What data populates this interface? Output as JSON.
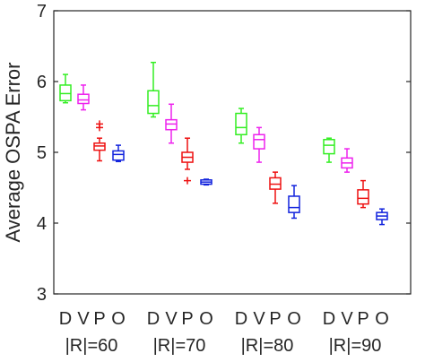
{
  "chart_data": {
    "type": "boxplot",
    "title": "",
    "xlabel": "",
    "ylabel": "Average OSPA Error",
    "ylim": [
      3,
      7
    ],
    "yticks": [
      3,
      4,
      5,
      6,
      7
    ],
    "grid": false,
    "legend": "none",
    "groups": [
      "|R|=60",
      "|R|=70",
      "|R|=80",
      "|R|=90"
    ],
    "categories": [
      "D",
      "V",
      "P",
      "O"
    ],
    "colors": [
      "#33ee22",
      "#ee22ee",
      "#ee1111",
      "#1122dd"
    ],
    "boxes": [
      [
        {
          "category": "D",
          "min": 5.7,
          "q1": 5.73,
          "median": 5.83,
          "q3": 5.95,
          "max": 6.1,
          "outliers": []
        },
        {
          "category": "V",
          "min": 5.6,
          "q1": 5.69,
          "median": 5.74,
          "q3": 5.82,
          "max": 5.95,
          "outliers": []
        },
        {
          "category": "P",
          "min": 4.88,
          "q1": 5.03,
          "median": 5.09,
          "q3": 5.13,
          "max": 5.2,
          "outliers": [
            5.4,
            5.35
          ]
        },
        {
          "category": "O",
          "min": 4.87,
          "q1": 4.89,
          "median": 4.97,
          "q3": 5.02,
          "max": 5.1,
          "outliers": []
        }
      ],
      [
        {
          "category": "D",
          "min": 5.5,
          "q1": 5.55,
          "median": 5.66,
          "q3": 5.87,
          "max": 6.27,
          "outliers": []
        },
        {
          "category": "V",
          "min": 5.13,
          "q1": 5.32,
          "median": 5.4,
          "q3": 5.46,
          "max": 5.68,
          "outliers": []
        },
        {
          "category": "P",
          "min": 4.76,
          "q1": 4.86,
          "median": 4.93,
          "q3": 5.0,
          "max": 5.2,
          "outliers": [
            4.6
          ]
        },
        {
          "category": "O",
          "min": 4.54,
          "q1": 4.55,
          "median": 4.58,
          "q3": 4.61,
          "max": 4.62,
          "outliers": []
        }
      ],
      [
        {
          "category": "D",
          "min": 5.13,
          "q1": 5.25,
          "median": 5.35,
          "q3": 5.55,
          "max": 5.62,
          "outliers": []
        },
        {
          "category": "V",
          "min": 4.86,
          "q1": 5.05,
          "median": 5.18,
          "q3": 5.25,
          "max": 5.35,
          "outliers": []
        },
        {
          "category": "P",
          "min": 4.28,
          "q1": 4.48,
          "median": 4.55,
          "q3": 4.64,
          "max": 4.72,
          "outliers": []
        },
        {
          "category": "O",
          "min": 4.07,
          "q1": 4.15,
          "median": 4.22,
          "q3": 4.38,
          "max": 4.53,
          "outliers": []
        }
      ],
      [
        {
          "category": "D",
          "min": 4.86,
          "q1": 4.98,
          "median": 5.1,
          "q3": 5.18,
          "max": 5.2,
          "outliers": []
        },
        {
          "category": "V",
          "min": 4.72,
          "q1": 4.78,
          "median": 4.85,
          "q3": 4.92,
          "max": 5.05,
          "outliers": []
        },
        {
          "category": "P",
          "min": 4.22,
          "q1": 4.27,
          "median": 4.35,
          "q3": 4.47,
          "max": 4.6,
          "outliers": []
        },
        {
          "category": "O",
          "min": 3.98,
          "q1": 4.05,
          "median": 4.1,
          "q3": 4.15,
          "max": 4.2,
          "outliers": []
        }
      ]
    ]
  }
}
